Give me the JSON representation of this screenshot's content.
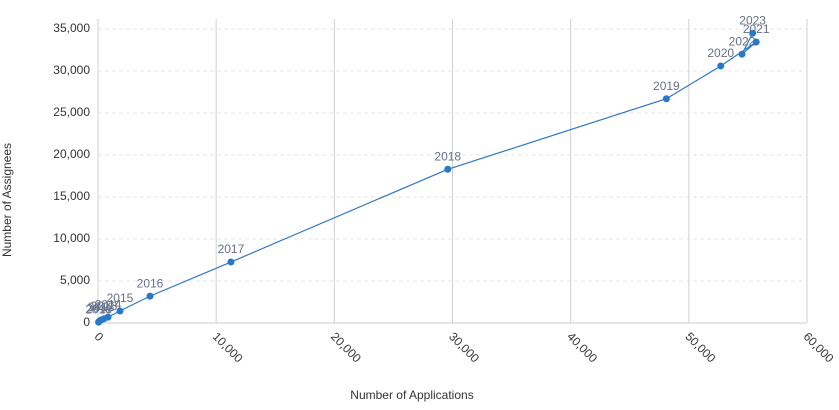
{
  "chart_data": {
    "type": "scatter",
    "labels": [
      "2010",
      "2011",
      "2012",
      "2013",
      "2014",
      "2015",
      "2016",
      "2017",
      "2018",
      "2019",
      "2020",
      "2021",
      "2022",
      "2023"
    ],
    "x": [
      50,
      100,
      250,
      500,
      850,
      1860,
      4400,
      11250,
      29600,
      48100,
      52700,
      55700,
      54500,
      55400
    ],
    "values": [
      100,
      200,
      350,
      500,
      700,
      1430,
      3200,
      7260,
      18300,
      26700,
      30600,
      33450,
      32000,
      34500
    ],
    "color": "#2a78c8",
    "line": true,
    "xlabel": "Number of Applications",
    "ylabel": "Number of Assignees",
    "xlim": [
      0,
      60000
    ],
    "ylim": [
      0,
      35000
    ],
    "xticks": [
      0,
      {
        "value": 10000,
        "label": "10,000"
      },
      {
        "value": 20000,
        "label": "20,000"
      },
      {
        "value": 30000,
        "label": "30,000"
      },
      {
        "value": 40000,
        "label": "40,000"
      },
      {
        "value": 50000,
        "label": "50,000"
      },
      {
        "value": 60000,
        "label": "60,000"
      }
    ],
    "yticks": [
      0,
      {
        "value": 5000,
        "label": "5,000"
      },
      {
        "value": 10000,
        "label": "10,000"
      },
      {
        "value": 15000,
        "label": "15,000"
      },
      {
        "value": 20000,
        "label": "20,000"
      },
      {
        "value": 25000,
        "label": "25,000"
      },
      {
        "value": 30000,
        "label": "30,000"
      },
      {
        "value": 35000,
        "label": "35,000"
      }
    ],
    "grid": true
  }
}
